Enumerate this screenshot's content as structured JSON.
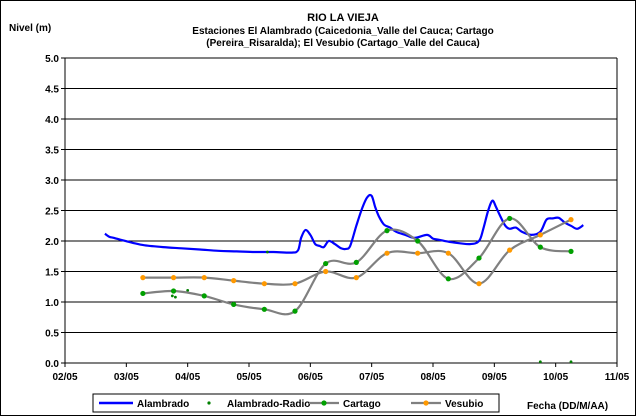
{
  "chart_data": {
    "type": "line",
    "title": "RIO LA VIEJA",
    "subtitle_lines": [
      "Estaciones El Alambrado (Caicedonia_Valle del Cauca; Cartago",
      "(Pereira_Risaralda);  El Vesubio (Cartago_Valle del Cauca)"
    ],
    "ylabel": "Nivel (m)",
    "xlabel": "Fecha (DD/M/AA)",
    "ylim": [
      0,
      5
    ],
    "yticks": [
      "0.0",
      "0.5",
      "1.0",
      "1.5",
      "2.0",
      "2.5",
      "3.0",
      "3.5",
      "4.0",
      "4.5",
      "5.0"
    ],
    "xlim": [
      2,
      11
    ],
    "xticks": [
      "02/05",
      "03/05",
      "04/05",
      "05/05",
      "06/05",
      "07/05",
      "08/05",
      "09/05",
      "10/05",
      "11/05"
    ],
    "grid": "horizontal",
    "legend_position": "bottom",
    "series": [
      {
        "name": "Alambrado",
        "color": "#0000ff",
        "style": "line",
        "x": [
          2.65,
          2.72,
          2.8,
          2.95,
          3.1,
          3.3,
          3.6,
          3.9,
          4.2,
          4.5,
          4.8,
          5.1,
          5.4,
          5.7,
          5.8,
          5.85,
          5.92,
          6.0,
          6.08,
          6.15,
          6.22,
          6.3,
          6.4,
          6.5,
          6.58,
          6.65,
          6.75,
          6.85,
          6.93,
          7.0,
          7.06,
          7.12,
          7.2,
          7.3,
          7.4,
          7.55,
          7.7,
          7.9,
          8.0,
          8.1,
          8.3,
          8.6,
          8.75,
          8.82,
          8.9,
          8.97,
          9.03,
          9.1,
          9.18,
          9.25,
          9.35,
          9.45,
          9.6,
          9.75,
          9.85,
          9.95,
          10.05,
          10.15,
          10.25,
          10.35,
          10.45
        ],
        "y": [
          2.12,
          2.07,
          2.05,
          2.01,
          1.97,
          1.93,
          1.9,
          1.88,
          1.86,
          1.84,
          1.83,
          1.82,
          1.82,
          1.81,
          1.85,
          2.05,
          2.18,
          2.1,
          1.95,
          1.92,
          1.9,
          2.0,
          1.95,
          1.88,
          1.87,
          1.92,
          2.25,
          2.55,
          2.72,
          2.74,
          2.55,
          2.4,
          2.27,
          2.22,
          2.15,
          2.1,
          2.05,
          2.1,
          2.04,
          2.02,
          1.98,
          1.95,
          2.0,
          2.2,
          2.5,
          2.66,
          2.55,
          2.4,
          2.25,
          2.2,
          2.22,
          2.15,
          2.1,
          2.15,
          2.35,
          2.37,
          2.38,
          2.3,
          2.25,
          2.2,
          2.26
        ]
      },
      {
        "name": "Alambrado-Radio",
        "color": "#008000",
        "style": "points",
        "x": [
          3.75,
          3.8,
          4.0,
          5.3,
          9.75,
          10.25
        ],
        "y": [
          1.1,
          1.08,
          1.19,
          1.82,
          0.02,
          0.02
        ]
      },
      {
        "name": "Cartago",
        "color": "#808080",
        "marker_color": "#00a000",
        "style": "line-markers",
        "x": [
          3.27,
          3.77,
          4.27,
          4.75,
          5.25,
          5.75,
          6.25,
          6.75,
          7.25,
          7.75,
          8.25,
          8.75,
          9.25,
          9.75,
          10.25
        ],
        "y": [
          1.14,
          1.18,
          1.1,
          0.96,
          0.88,
          0.85,
          1.63,
          1.65,
          2.17,
          2.0,
          1.38,
          1.72,
          2.37,
          1.9,
          1.83
        ]
      },
      {
        "name": "Vesubio",
        "color": "#808080",
        "marker_color": "#ff9900",
        "style": "line-markers",
        "x": [
          3.27,
          3.77,
          4.27,
          4.75,
          5.25,
          5.75,
          6.25,
          6.75,
          7.25,
          7.75,
          8.25,
          8.75,
          9.25,
          9.75,
          10.25
        ],
        "y": [
          1.4,
          1.4,
          1.4,
          1.35,
          1.3,
          1.3,
          1.5,
          1.4,
          1.8,
          1.8,
          1.8,
          1.3,
          1.85,
          2.1,
          2.35
        ]
      }
    ]
  }
}
